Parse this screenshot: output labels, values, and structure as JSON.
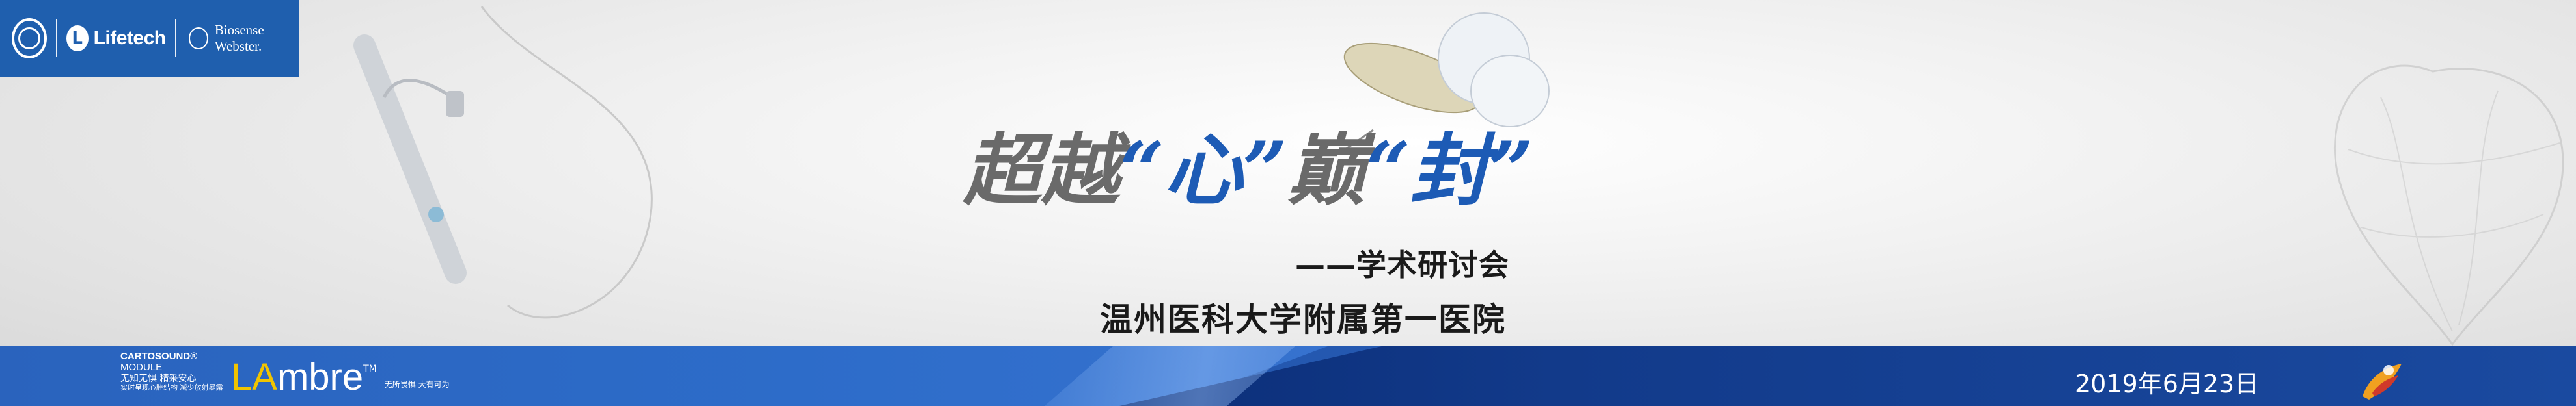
{
  "header": {
    "brand_lifetech": "Lifetech",
    "brand_biosense": "Biosense Webster."
  },
  "title": {
    "part1": "超越",
    "open_quote1": "“",
    "word1": "心",
    "close_quote1": "”",
    "part2": "巅",
    "open_quote2": "“",
    "word2": "封",
    "close_quote2": "”"
  },
  "subtitle": "——学术研讨会",
  "hospital": "温州医科大学附属第一医院",
  "footer": {
    "carto_line1": "CARTOSOUND®",
    "carto_line2": "MODULE",
    "carto_line3": "无知无惧 精采安心",
    "carto_line4": "实时呈现心腔结构 减少放射暴露",
    "lambre_prefix": "LA",
    "lambre_suffix": "mbre",
    "lambre_tm": "TM",
    "lambre_tagline": "无所畏惧 大有可为",
    "date": "2019年6月23日"
  },
  "colors": {
    "brand_blue": "#1f5fae",
    "title_blue": "#1d5bb5",
    "title_grey": "#6a6a6a",
    "bar_dark": "#0b2e78",
    "lambre_accent": "#f0c400"
  }
}
